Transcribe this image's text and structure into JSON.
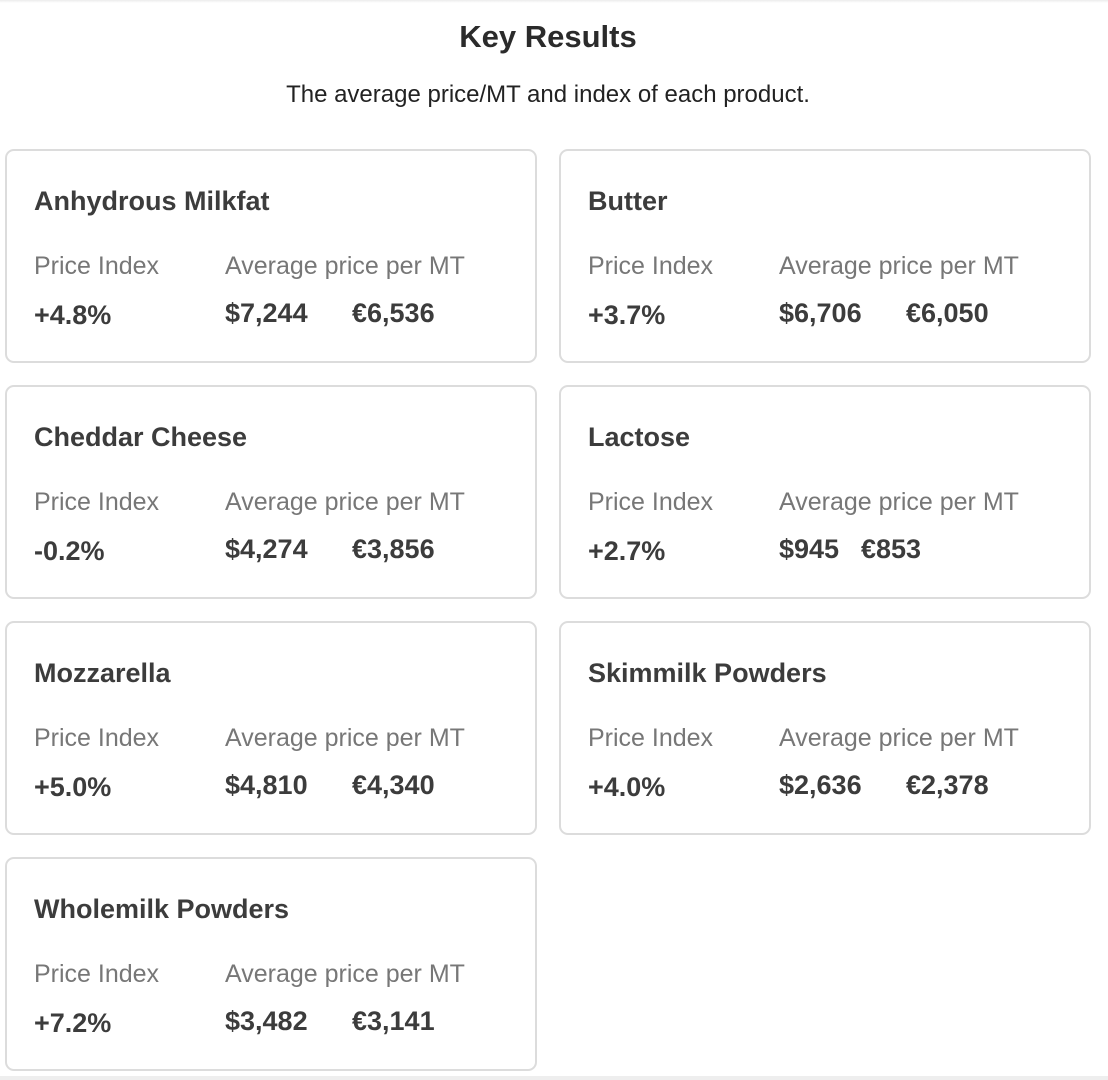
{
  "header": {
    "title": "Key Results",
    "subtitle": "The average price/MT and index of each product."
  },
  "labels": {
    "price_index": "Price Index",
    "average_price": "Average price per MT"
  },
  "products": [
    {
      "name": "Anhydrous Milkfat",
      "index": "+4.8%",
      "usd": "$7,244",
      "eur": "€6,536"
    },
    {
      "name": "Butter",
      "index": "+3.7%",
      "usd": "$6,706",
      "eur": "€6,050"
    },
    {
      "name": "Cheddar Cheese",
      "index": "-0.2%",
      "usd": "$4,274",
      "eur": "€3,856"
    },
    {
      "name": "Lactose",
      "index": "+2.7%",
      "usd": "$945",
      "eur": "€853"
    },
    {
      "name": "Mozzarella",
      "index": "+5.0%",
      "usd": "$4,810",
      "eur": "€4,340"
    },
    {
      "name": "Skimmilk Powders",
      "index": "+4.0%",
      "usd": "$2,636",
      "eur": "€2,378"
    },
    {
      "name": "Wholemilk Powders",
      "index": "+7.2%",
      "usd": "$3,482",
      "eur": "€3,141"
    }
  ]
}
